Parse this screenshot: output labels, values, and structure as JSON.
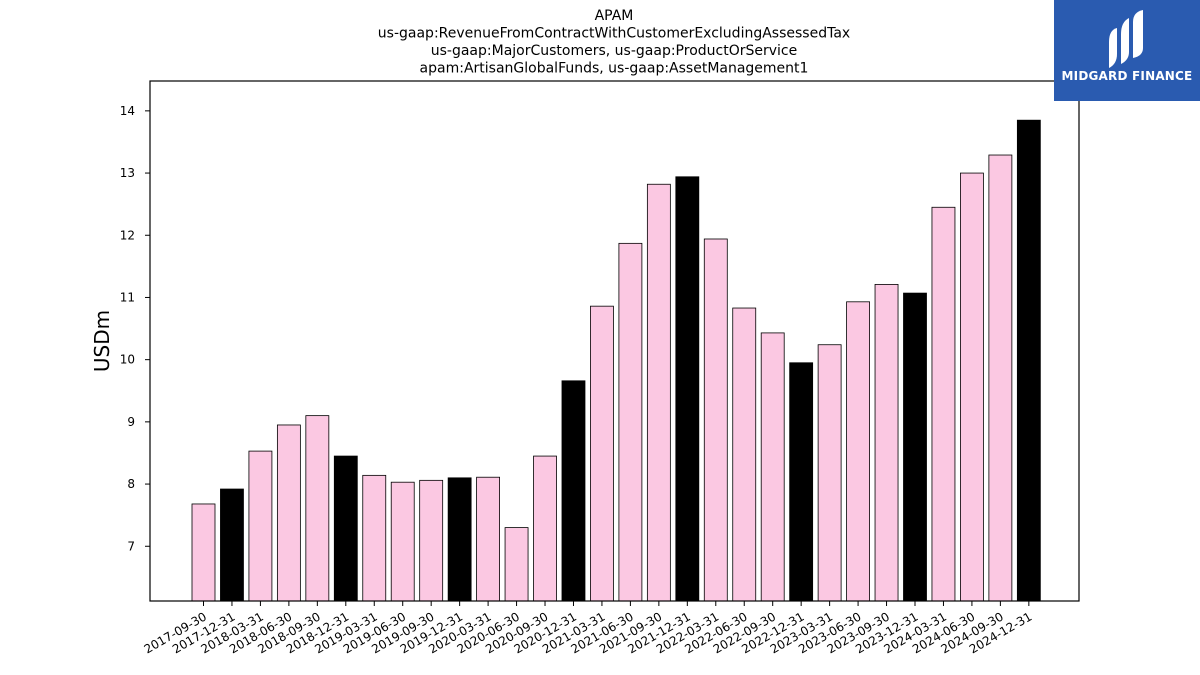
{
  "chart_data": {
    "type": "bar",
    "title_lines": [
      "APAM",
      "us-gaap:RevenueFromContractWithCustomerExcludingAssessedTax",
      "us-gaap:MajorCustomers, us-gaap:ProductOrService",
      "apam:ArtisanGlobalFunds, us-gaap:AssetManagement1"
    ],
    "ylabel": "USDm",
    "xlabel": "",
    "ylim": [
      6.12,
      14.48
    ],
    "yticks": [
      7,
      8,
      9,
      10,
      11,
      12,
      13,
      14
    ],
    "grid": false,
    "categories": [
      "2017-09-30",
      "2017-12-31",
      "2018-03-31",
      "2018-06-30",
      "2018-09-30",
      "2018-12-31",
      "2019-03-31",
      "2019-06-30",
      "2019-09-30",
      "2019-12-31",
      "2020-03-31",
      "2020-06-30",
      "2020-09-30",
      "2020-12-31",
      "2021-03-31",
      "2021-06-30",
      "2021-09-30",
      "2021-12-31",
      "2022-03-31",
      "2022-06-30",
      "2022-09-30",
      "2022-12-31",
      "2023-03-31",
      "2023-06-30",
      "2023-09-30",
      "2023-12-31",
      "2024-03-31",
      "2024-06-30",
      "2024-09-30",
      "2024-12-31"
    ],
    "values": [
      7.68,
      7.92,
      8.53,
      8.95,
      9.1,
      8.45,
      8.14,
      8.03,
      8.06,
      8.1,
      8.11,
      7.3,
      8.45,
      9.66,
      10.86,
      11.87,
      12.82,
      12.94,
      11.94,
      10.83,
      10.43,
      9.95,
      10.24,
      10.93,
      11.21,
      11.07,
      12.45,
      13.0,
      13.29,
      13.85
    ],
    "colors": {
      "quarter": "#fbc8e2",
      "year_end": "#000000",
      "edge": "#000000"
    }
  },
  "logo": {
    "text": "MIDGARD FINANCE",
    "background": "#2a5bb0"
  }
}
